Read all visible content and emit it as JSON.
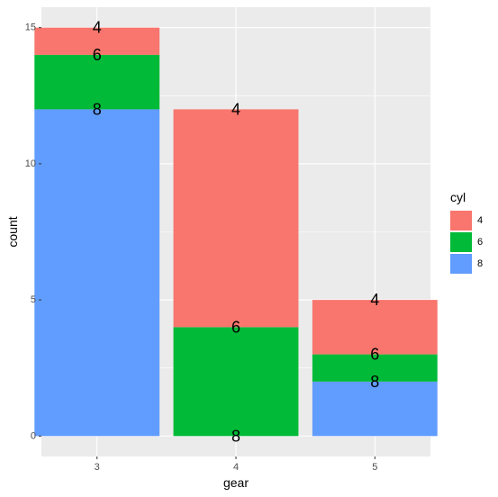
{
  "chart_data": {
    "type": "bar",
    "stacked": true,
    "categories": [
      "3",
      "4",
      "5"
    ],
    "series": [
      {
        "name": "4",
        "values": [
          1,
          8,
          2
        ],
        "color": "#F8766D"
      },
      {
        "name": "6",
        "values": [
          2,
          4,
          1
        ],
        "color": "#00BA38"
      },
      {
        "name": "8",
        "values": [
          12,
          0,
          2
        ],
        "color": "#619CFF"
      }
    ],
    "data_labels": [
      {
        "category": "3",
        "text": "4",
        "y": 15
      },
      {
        "category": "3",
        "text": "6",
        "y": 14
      },
      {
        "category": "3",
        "text": "8",
        "y": 12
      },
      {
        "category": "4",
        "text": "4",
        "y": 12
      },
      {
        "category": "4",
        "text": "6",
        "y": 4
      },
      {
        "category": "4",
        "text": "8",
        "y": 0
      },
      {
        "category": "5",
        "text": "4",
        "y": 5
      },
      {
        "category": "5",
        "text": "6",
        "y": 3
      },
      {
        "category": "5",
        "text": "8",
        "y": 2
      }
    ],
    "xlabel": "gear",
    "ylabel": "count",
    "y_ticks": [
      0,
      5,
      10,
      15
    ],
    "legend_title": "cyl",
    "legend_placement": "right",
    "grid": true,
    "ylim": [
      -0.75,
      15.75
    ],
    "panel_background": "#EBEBEB"
  }
}
